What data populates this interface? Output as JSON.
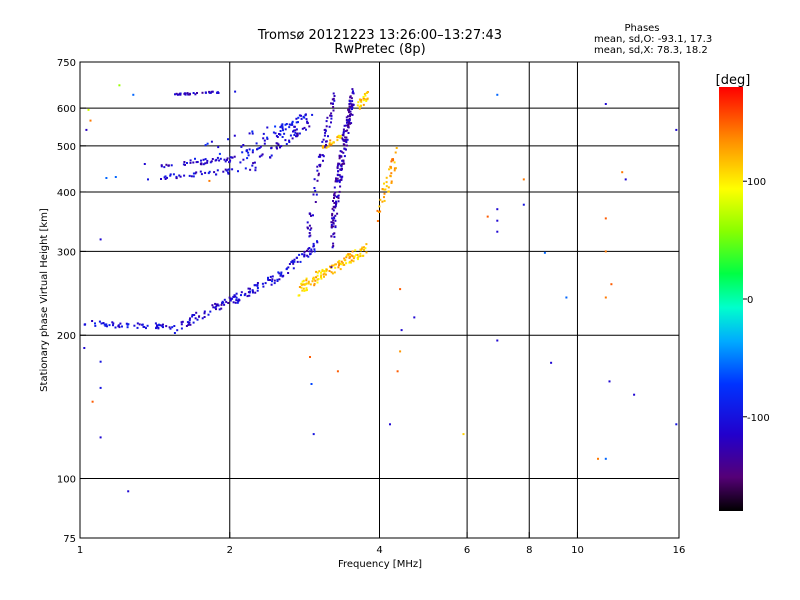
{
  "chart_data": {
    "type": "scatter",
    "title": "Tromsø 20121223 13:26:00–13:27:43",
    "subtitle": "RwPretec (8p)",
    "xlabel": "Frequency [MHz]",
    "ylabel": "Stationary phase Virtual Height [km]",
    "x_scale": "log",
    "y_scale": "log",
    "xlim": [
      1,
      16
    ],
    "ylim": [
      75,
      750
    ],
    "x_ticks": [
      1,
      2,
      4,
      6,
      8,
      10,
      16
    ],
    "x_tick_labels": [
      "1",
      "2",
      "4",
      "6",
      "8",
      "10",
      "16"
    ],
    "y_ticks": [
      75,
      100,
      200,
      300,
      400,
      500,
      600,
      750
    ],
    "y_tick_labels": [
      "75",
      "100",
      "200",
      "300",
      "400",
      "500",
      "600",
      "750"
    ],
    "grid": true,
    "phases_info": {
      "title": "Phases",
      "o_line": "mean, sd,O: -93.1, 17.3",
      "x_line": "mean, sd,X:  78.3, 18.2"
    },
    "colorbar": {
      "label": "[deg]",
      "range": [
        -180,
        180
      ],
      "ticks": [
        -100,
        0,
        100
      ],
      "tick_labels": [
        "-100",
        "0",
        "100"
      ]
    },
    "traces": [
      {
        "x_range": [
          1.02,
          1.55
        ],
        "height": [
          212,
          208
        ],
        "phase": -105,
        "spread": 3,
        "count": 55
      },
      {
        "x_range": [
          1.55,
          2.05
        ],
        "height": [
          206,
          240
        ],
        "phase": -115,
        "spread": 5,
        "count": 60
      },
      {
        "x_range": [
          2.05,
          2.55
        ],
        "height": [
          238,
          268
        ],
        "phase": -105,
        "spread": 6,
        "count": 55
      },
      {
        "x_range": [
          2.55,
          3.0
        ],
        "height": [
          268,
          310
        ],
        "phase": -110,
        "spread": 7,
        "count": 40
      },
      {
        "x_range": [
          2.75,
          3.8
        ],
        "height": [
          250,
          305
        ],
        "phase": 115,
        "spread": 8,
        "count": 120
      },
      {
        "x_range": [
          3.2,
          3.55
        ],
        "height": [
          320,
          640
        ],
        "phase": -125,
        "spread": 45,
        "count": 190
      },
      {
        "x_range": [
          2.85,
          3.25
        ],
        "height": [
          300,
          630
        ],
        "phase": -120,
        "spread": 30,
        "count": 70
      },
      {
        "x_range": [
          1.45,
          2.1
        ],
        "height": [
          455,
          470
        ],
        "phase": -115,
        "spread": 6,
        "count": 45
      },
      {
        "x_range": [
          2.1,
          2.95
        ],
        "height": [
          470,
          590
        ],
        "phase": -100,
        "spread": 12,
        "count": 55
      },
      {
        "x_range": [
          1.45,
          2.2
        ],
        "height": [
          430,
          445
        ],
        "phase": -110,
        "spread": 5,
        "count": 40
      },
      {
        "x_range": [
          2.2,
          2.9
        ],
        "height": [
          445,
          560
        ],
        "phase": -115,
        "spread": 12,
        "count": 45
      },
      {
        "x_range": [
          1.55,
          1.9
        ],
        "height": [
          640,
          648
        ],
        "phase": -120,
        "spread": 3,
        "count": 35
      },
      {
        "x_range": [
          3.6,
          3.8
        ],
        "height": [
          600,
          640
        ],
        "phase": 115,
        "spread": 15,
        "count": 25
      },
      {
        "x_range": [
          3.05,
          3.35
        ],
        "height": [
          490,
          520
        ],
        "phase": 120,
        "spread": 10,
        "count": 20
      },
      {
        "x_range": [
          3.95,
          4.35
        ],
        "height": [
          350,
          480
        ],
        "phase": 125,
        "spread": 25,
        "count": 40
      },
      {
        "x_range": [
          1.7,
          2.6
        ],
        "height": [
          480,
          540
        ],
        "phase": -95,
        "spread": 20,
        "count": 25
      }
    ],
    "scatter_points": [
      {
        "x": 1.2,
        "y": 670,
        "phase": 60
      },
      {
        "x": 1.04,
        "y": 595,
        "phase": 80
      },
      {
        "x": 1.05,
        "y": 565,
        "phase": 140
      },
      {
        "x": 1.03,
        "y": 540,
        "phase": -120
      },
      {
        "x": 1.35,
        "y": 458,
        "phase": -110
      },
      {
        "x": 1.28,
        "y": 640,
        "phase": -60
      },
      {
        "x": 1.13,
        "y": 428,
        "phase": -60
      },
      {
        "x": 1.18,
        "y": 430,
        "phase": -60
      },
      {
        "x": 1.37,
        "y": 425,
        "phase": -100
      },
      {
        "x": 1.1,
        "y": 318,
        "phase": -110
      },
      {
        "x": 1.02,
        "y": 188,
        "phase": -110
      },
      {
        "x": 1.1,
        "y": 176,
        "phase": -100
      },
      {
        "x": 1.1,
        "y": 155,
        "phase": -100
      },
      {
        "x": 1.06,
        "y": 145,
        "phase": 150
      },
      {
        "x": 1.1,
        "y": 122,
        "phase": -110
      },
      {
        "x": 1.25,
        "y": 94,
        "phase": -110
      },
      {
        "x": 2.05,
        "y": 650,
        "phase": -100
      },
      {
        "x": 1.82,
        "y": 422,
        "phase": 140
      },
      {
        "x": 2.9,
        "y": 180,
        "phase": 150
      },
      {
        "x": 2.92,
        "y": 158,
        "phase": -70
      },
      {
        "x": 2.95,
        "y": 124,
        "phase": -100
      },
      {
        "x": 3.3,
        "y": 168,
        "phase": 150
      },
      {
        "x": 4.4,
        "y": 250,
        "phase": 150
      },
      {
        "x": 4.43,
        "y": 205,
        "phase": -110
      },
      {
        "x": 4.7,
        "y": 218,
        "phase": -110
      },
      {
        "x": 4.4,
        "y": 185,
        "phase": 130
      },
      {
        "x": 4.35,
        "y": 168,
        "phase": 150
      },
      {
        "x": 4.2,
        "y": 130,
        "phase": -110
      },
      {
        "x": 5.9,
        "y": 124,
        "phase": 110
      },
      {
        "x": 6.9,
        "y": 640,
        "phase": -60
      },
      {
        "x": 6.9,
        "y": 368,
        "phase": -110
      },
      {
        "x": 6.9,
        "y": 348,
        "phase": -110
      },
      {
        "x": 6.9,
        "y": 330,
        "phase": -110
      },
      {
        "x": 6.9,
        "y": 195,
        "phase": -110
      },
      {
        "x": 6.6,
        "y": 355,
        "phase": 150
      },
      {
        "x": 7.8,
        "y": 376,
        "phase": -100
      },
      {
        "x": 7.8,
        "y": 425,
        "phase": 140
      },
      {
        "x": 8.6,
        "y": 298,
        "phase": -60
      },
      {
        "x": 8.85,
        "y": 175,
        "phase": -110
      },
      {
        "x": 9.5,
        "y": 240,
        "phase": -60
      },
      {
        "x": 11.0,
        "y": 110,
        "phase": 140
      },
      {
        "x": 11.4,
        "y": 110,
        "phase": -60
      },
      {
        "x": 11.4,
        "y": 612,
        "phase": -110
      },
      {
        "x": 11.4,
        "y": 352,
        "phase": 150
      },
      {
        "x": 11.4,
        "y": 300,
        "phase": 140
      },
      {
        "x": 11.4,
        "y": 240,
        "phase": 140
      },
      {
        "x": 11.7,
        "y": 256,
        "phase": 150
      },
      {
        "x": 11.6,
        "y": 160,
        "phase": -110
      },
      {
        "x": 12.3,
        "y": 440,
        "phase": 140
      },
      {
        "x": 12.5,
        "y": 425,
        "phase": -110
      },
      {
        "x": 13.0,
        "y": 150,
        "phase": -110
      },
      {
        "x": 15.8,
        "y": 540,
        "phase": -110
      },
      {
        "x": 15.8,
        "y": 130,
        "phase": -100
      }
    ]
  }
}
